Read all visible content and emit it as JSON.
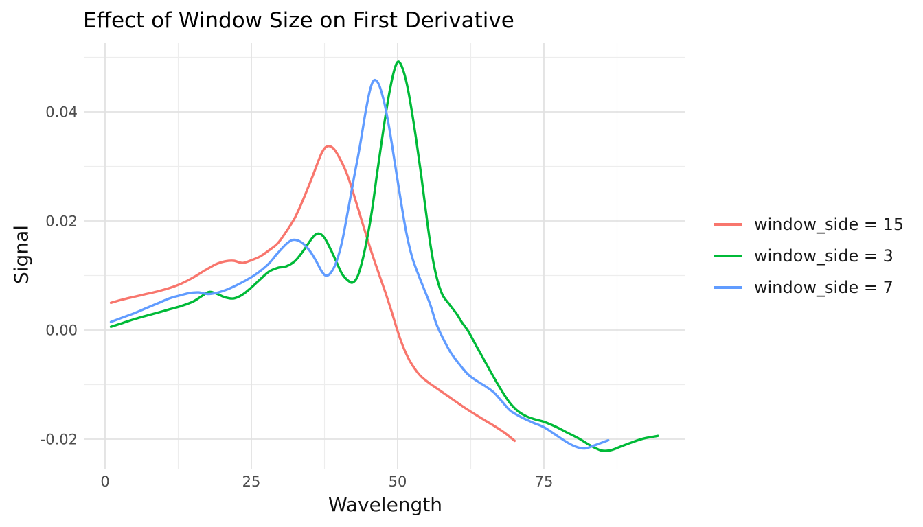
{
  "title": "Effect of Window Size on First Derivative",
  "chart_data": {
    "type": "line",
    "title": "Effect of Window Size on First Derivative",
    "xlabel": "Wavelength",
    "ylabel": "Signal",
    "xlim": [
      -3.7,
      99.1
    ],
    "ylim": [
      -0.0257,
      0.0528
    ],
    "grid": true,
    "legend_position": "right",
    "x_ticks": [
      {
        "value": 0,
        "label": "0"
      },
      {
        "value": 25,
        "label": "25"
      },
      {
        "value": 50,
        "label": "50"
      },
      {
        "value": 75,
        "label": "75"
      }
    ],
    "x_minor_ticks": [
      12.5,
      37.5,
      62.5,
      87.5
    ],
    "y_ticks": [
      {
        "value": 0.04,
        "label": "0.04"
      },
      {
        "value": 0.02,
        "label": "0.02"
      },
      {
        "value": 0.0,
        "label": "0.00"
      },
      {
        "value": -0.02,
        "label": "-0.02"
      }
    ],
    "y_minor_ticks": [
      0.05,
      0.03,
      0.01,
      -0.01
    ],
    "series": [
      {
        "name": "window_side = 15",
        "color": "#F8766D",
        "points": [
          [
            1,
            0.005
          ],
          [
            3,
            0.0056
          ],
          [
            5,
            0.0061
          ],
          [
            7,
            0.0066
          ],
          [
            9,
            0.0071
          ],
          [
            11,
            0.0077
          ],
          [
            13,
            0.0085
          ],
          [
            15,
            0.0096
          ],
          [
            17,
            0.0109
          ],
          [
            19,
            0.0121
          ],
          [
            20.5,
            0.0126
          ],
          [
            22,
            0.0127
          ],
          [
            23.5,
            0.0123
          ],
          [
            25,
            0.0128
          ],
          [
            26.5,
            0.0135
          ],
          [
            28,
            0.0146
          ],
          [
            29.5,
            0.0159
          ],
          [
            31,
            0.0181
          ],
          [
            32.5,
            0.0207
          ],
          [
            34,
            0.0243
          ],
          [
            35.5,
            0.0283
          ],
          [
            37,
            0.0324
          ],
          [
            38,
            0.0337
          ],
          [
            39,
            0.0333
          ],
          [
            40,
            0.0317
          ],
          [
            41,
            0.0295
          ],
          [
            42,
            0.0266
          ],
          [
            43,
            0.0231
          ],
          [
            44,
            0.0196
          ],
          [
            45,
            0.0161
          ],
          [
            46,
            0.0128
          ],
          [
            47,
            0.0097
          ],
          [
            48,
            0.0066
          ],
          [
            49,
            0.0033
          ],
          [
            50,
            -0.0002
          ],
          [
            51,
            -0.0032
          ],
          [
            52,
            -0.0055
          ],
          [
            53,
            -0.0072
          ],
          [
            54,
            -0.0085
          ],
          [
            55.5,
            -0.0098
          ],
          [
            57,
            -0.0109
          ],
          [
            59,
            -0.0124
          ],
          [
            61,
            -0.0139
          ],
          [
            63,
            -0.0153
          ],
          [
            65,
            -0.0166
          ],
          [
            67,
            -0.0179
          ],
          [
            68.5,
            -0.019
          ],
          [
            70,
            -0.0203
          ]
        ]
      },
      {
        "name": "window_side = 3",
        "color": "#00BA38",
        "points": [
          [
            1,
            0.0006
          ],
          [
            3,
            0.0013
          ],
          [
            5,
            0.002
          ],
          [
            7,
            0.0026
          ],
          [
            9,
            0.0032
          ],
          [
            11,
            0.0038
          ],
          [
            13,
            0.0044
          ],
          [
            15,
            0.0052
          ],
          [
            16.5,
            0.0062
          ],
          [
            17.8,
            0.007
          ],
          [
            19.2,
            0.0066
          ],
          [
            20.5,
            0.006
          ],
          [
            22,
            0.0058
          ],
          [
            23.5,
            0.0065
          ],
          [
            25,
            0.0078
          ],
          [
            26.5,
            0.0093
          ],
          [
            28,
            0.0107
          ],
          [
            29.5,
            0.0114
          ],
          [
            31,
            0.0117
          ],
          [
            32.5,
            0.0127
          ],
          [
            34,
            0.0147
          ],
          [
            35.5,
            0.017
          ],
          [
            36.5,
            0.0177
          ],
          [
            37.5,
            0.0169
          ],
          [
            38.5,
            0.0149
          ],
          [
            39.5,
            0.0126
          ],
          [
            40.5,
            0.0103
          ],
          [
            41.5,
            0.0091
          ],
          [
            42.3,
            0.0087
          ],
          [
            43.1,
            0.0097
          ],
          [
            43.9,
            0.0124
          ],
          [
            44.7,
            0.0163
          ],
          [
            45.6,
            0.0218
          ],
          [
            46.4,
            0.028
          ],
          [
            47.2,
            0.034
          ],
          [
            48,
            0.0398
          ],
          [
            48.8,
            0.0447
          ],
          [
            49.5,
            0.0479
          ],
          [
            50.1,
            0.0492
          ],
          [
            50.8,
            0.0481
          ],
          [
            51.6,
            0.045
          ],
          [
            52.4,
            0.0403
          ],
          [
            53.2,
            0.0347
          ],
          [
            54,
            0.0286
          ],
          [
            54.8,
            0.022
          ],
          [
            55.7,
            0.015
          ],
          [
            56.6,
            0.01
          ],
          [
            57.6,
            0.0066
          ],
          [
            58.7,
            0.0049
          ],
          [
            60,
            0.0031
          ],
          [
            61,
            0.0014
          ],
          [
            62,
            -0.0001
          ],
          [
            63.5,
            -0.003
          ],
          [
            65,
            -0.0059
          ],
          [
            67.1,
            -0.0099
          ],
          [
            69,
            -0.0131
          ],
          [
            70.5,
            -0.0148
          ],
          [
            72,
            -0.0158
          ],
          [
            73.6,
            -0.0164
          ],
          [
            75,
            -0.0168
          ],
          [
            77,
            -0.0177
          ],
          [
            79,
            -0.0188
          ],
          [
            81,
            -0.0199
          ],
          [
            83,
            -0.0212
          ],
          [
            84.9,
            -0.0221
          ],
          [
            86.5,
            -0.022
          ],
          [
            88,
            -0.0214
          ],
          [
            90,
            -0.0206
          ],
          [
            92,
            -0.0199
          ],
          [
            94.5,
            -0.0194
          ]
        ]
      },
      {
        "name": "window_side = 7",
        "color": "#619CFF",
        "points": [
          [
            1,
            0.0015
          ],
          [
            3,
            0.0023
          ],
          [
            5,
            0.0031
          ],
          [
            7,
            0.004
          ],
          [
            9,
            0.0049
          ],
          [
            11,
            0.0058
          ],
          [
            13,
            0.0064
          ],
          [
            14.5,
            0.0068
          ],
          [
            16,
            0.0069
          ],
          [
            17.5,
            0.0066
          ],
          [
            19,
            0.0068
          ],
          [
            21,
            0.0075
          ],
          [
            23,
            0.0085
          ],
          [
            25,
            0.0097
          ],
          [
            26.5,
            0.0108
          ],
          [
            28,
            0.0122
          ],
          [
            29.5,
            0.0141
          ],
          [
            31,
            0.0158
          ],
          [
            32,
            0.0165
          ],
          [
            33,
            0.0164
          ],
          [
            34,
            0.0157
          ],
          [
            35,
            0.0145
          ],
          [
            36,
            0.0128
          ],
          [
            37,
            0.0108
          ],
          [
            37.7,
            0.01
          ],
          [
            38.5,
            0.0104
          ],
          [
            39.5,
            0.0124
          ],
          [
            40.5,
            0.0162
          ],
          [
            41.5,
            0.0218
          ],
          [
            42.5,
            0.0277
          ],
          [
            43.5,
            0.0334
          ],
          [
            44.5,
            0.0398
          ],
          [
            45.3,
            0.0441
          ],
          [
            46,
            0.0458
          ],
          [
            46.8,
            0.045
          ],
          [
            47.6,
            0.0422
          ],
          [
            48.5,
            0.0375
          ],
          [
            49.5,
            0.0308
          ],
          [
            50.5,
            0.024
          ],
          [
            51.5,
            0.0178
          ],
          [
            52.5,
            0.0133
          ],
          [
            53.6,
            0.01
          ],
          [
            54.6,
            0.0073
          ],
          [
            55.6,
            0.0046
          ],
          [
            56.6,
            0.0012
          ],
          [
            57.6,
            -0.0012
          ],
          [
            59,
            -0.004
          ],
          [
            60.5,
            -0.0062
          ],
          [
            62,
            -0.0081
          ],
          [
            63.5,
            -0.0093
          ],
          [
            65,
            -0.0103
          ],
          [
            66.5,
            -0.0115
          ],
          [
            68,
            -0.0133
          ],
          [
            69.3,
            -0.0148
          ],
          [
            71,
            -0.0159
          ],
          [
            73,
            -0.0169
          ],
          [
            75,
            -0.0178
          ],
          [
            77,
            -0.0192
          ],
          [
            79,
            -0.0206
          ],
          [
            80.5,
            -0.0214
          ],
          [
            82,
            -0.0217
          ],
          [
            83.5,
            -0.0212
          ],
          [
            85,
            -0.0206
          ],
          [
            86,
            -0.0202
          ]
        ]
      }
    ]
  },
  "legend": {
    "entries": [
      {
        "label": "window_side = 15",
        "color": "#F8766D"
      },
      {
        "label": "window_side = 3",
        "color": "#00BA38"
      },
      {
        "label": "window_side = 7",
        "color": "#619CFF"
      }
    ]
  },
  "style": {
    "grid_major_color": "#e2e2e2",
    "grid_minor_color": "#ededed",
    "tick_label_color": "#4d4d4d"
  }
}
